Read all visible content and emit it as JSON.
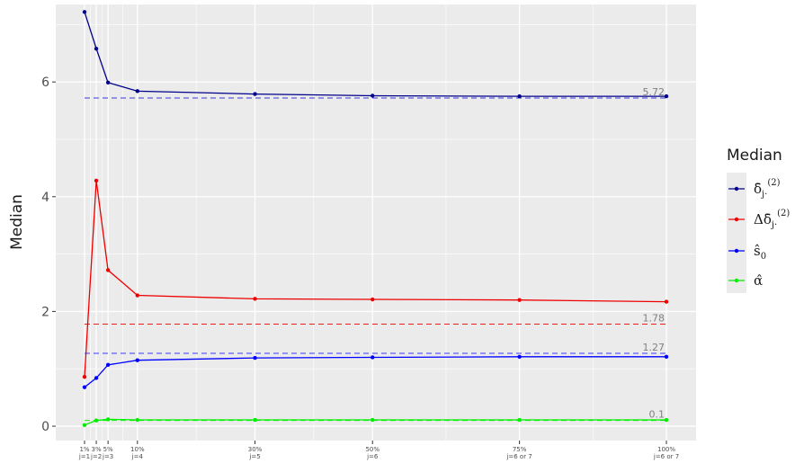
{
  "chart_data": {
    "type": "line",
    "title": "",
    "xlabel": "",
    "ylabel": "Median",
    "ylim": [
      -0.25,
      7.35
    ],
    "grid": true,
    "legend_position": "right",
    "legend_title": "Median",
    "x": [
      1,
      3,
      5,
      10,
      30,
      50,
      75,
      100
    ],
    "x_ticks": [
      {
        "x": 1,
        "line1": "1%",
        "line2": "j=1"
      },
      {
        "x": 3,
        "line1": "3%",
        "line2": "j=2"
      },
      {
        "x": 5,
        "line1": "5%",
        "line2": "j=3"
      },
      {
        "x": 10,
        "line1": "10%",
        "line2": "j=4"
      },
      {
        "x": 30,
        "line1": "30%",
        "line2": "j=5"
      },
      {
        "x": 50,
        "line1": "50%",
        "line2": "j=6"
      },
      {
        "x": 75,
        "line1": "75%",
        "line2": "j=6 or 7"
      },
      {
        "x": 100,
        "line1": "100%",
        "line2": "j=6 or 7"
      }
    ],
    "y_ticks": [
      0,
      2,
      4,
      6
    ],
    "series": [
      {
        "name_main": "δ̄",
        "name_sub": "j·",
        "name_sup": "(2)",
        "color": "#00008b",
        "values": [
          7.22,
          6.58,
          5.99,
          5.84,
          5.79,
          5.76,
          5.75,
          5.75
        ]
      },
      {
        "name_main": "Δδ̄",
        "name_sub": "j·",
        "name_sup": "(2)",
        "color": "#ee0000",
        "values": [
          0.86,
          4.28,
          2.72,
          2.28,
          2.22,
          2.21,
          2.2,
          2.17
        ]
      },
      {
        "name_main": "ŝ",
        "name_sub": "0",
        "name_sup": "",
        "color": "#0000ff",
        "values": [
          0.68,
          0.84,
          1.07,
          1.15,
          1.19,
          1.2,
          1.21,
          1.21
        ]
      },
      {
        "name_main": "α̂",
        "name_sub": "",
        "name_sup": "",
        "color": "#00ee00",
        "values": [
          0.02,
          0.1,
          0.12,
          0.11,
          0.11,
          0.11,
          0.11,
          0.11
        ]
      }
    ],
    "reference_lines": [
      {
        "value": 5.72,
        "label": "5.72",
        "color": "#0000cd"
      },
      {
        "value": 1.78,
        "label": "1.78",
        "color": "#ee0000"
      },
      {
        "value": 1.27,
        "label": "1.27",
        "color": "#0000ff"
      },
      {
        "value": 0.1,
        "label": "0.1",
        "color": "#00ee00"
      }
    ]
  }
}
